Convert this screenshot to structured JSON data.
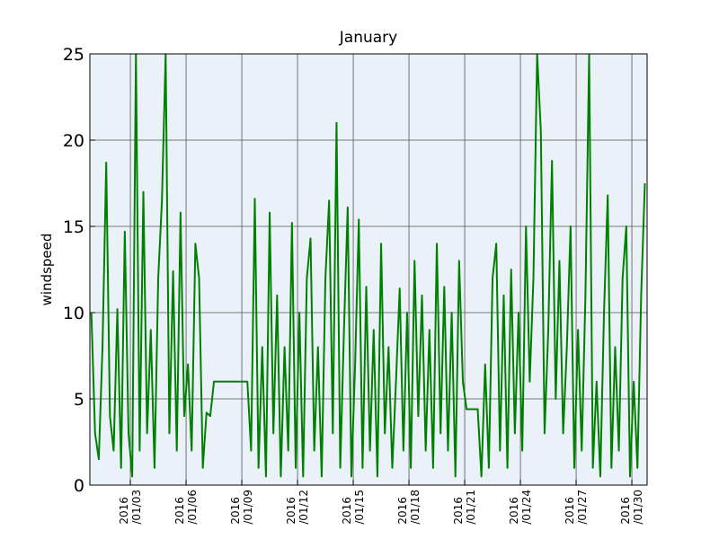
{
  "chart_data": {
    "type": "line",
    "title": "January",
    "y_label": "windspeed",
    "x": [
      0.9,
      1.1,
      1.3,
      1.5,
      1.7,
      1.9,
      2.1,
      2.3,
      2.5,
      2.7,
      2.9,
      3.1,
      3.3,
      3.5,
      3.7,
      3.9,
      4.1,
      4.3,
      4.5,
      4.7,
      4.9,
      5.1,
      5.3,
      5.5,
      5.7,
      5.9,
      6.1,
      6.3,
      6.5,
      6.7,
      6.9,
      7.1,
      7.3,
      7.5,
      7.7,
      7.9,
      8.1,
      8.3,
      8.5,
      8.7,
      8.9,
      9.1,
      9.3,
      9.5,
      9.7,
      9.9,
      10.1,
      10.3,
      10.5,
      10.7,
      10.9,
      11.1,
      11.3,
      11.5,
      11.7,
      11.9,
      12.1,
      12.3,
      12.5,
      12.7,
      12.9,
      13.1,
      13.3,
      13.5,
      13.7,
      13.9,
      14.1,
      14.3,
      14.5,
      14.7,
      14.9,
      15.1,
      15.3,
      15.5,
      15.7,
      15.9,
      16.1,
      16.3,
      16.5,
      16.7,
      16.9,
      17.1,
      17.3,
      17.5,
      17.7,
      17.9,
      18.1,
      18.3,
      18.5,
      18.7,
      18.9,
      19.1,
      19.3,
      19.5,
      19.7,
      19.9,
      20.1,
      20.3,
      20.5,
      20.7,
      20.9,
      21.1,
      21.3,
      21.5,
      21.7,
      21.9,
      22.1,
      22.3,
      22.5,
      22.7,
      22.9,
      23.1,
      23.3,
      23.5,
      23.7,
      23.9,
      24.1,
      24.3,
      24.5,
      24.7,
      24.9,
      25.1,
      25.3,
      25.5,
      25.7,
      25.9,
      26.1,
      26.3,
      26.5,
      26.7,
      26.9,
      27.1,
      27.3,
      27.5,
      27.7,
      27.9,
      28.1,
      28.3,
      28.5,
      28.7,
      28.9,
      29.1,
      29.3,
      29.5,
      29.7,
      29.9,
      30.1,
      30.3,
      30.5,
      30.7
    ],
    "series": [
      {
        "name": "windspeed",
        "color": "#008000",
        "values": [
          10,
          3,
          1.5,
          8,
          18.7,
          4,
          2,
          10.2,
          1,
          14.7,
          3,
          0.5,
          25,
          2,
          17,
          3,
          9,
          1,
          12,
          16.5,
          25,
          3,
          12.4,
          2,
          15.8,
          4,
          7,
          2,
          14,
          12,
          1,
          4.2,
          4,
          6,
          6,
          6,
          6,
          6,
          6,
          6,
          6,
          6,
          6,
          2,
          16.6,
          1,
          8,
          0.5,
          15.8,
          3,
          11,
          0.5,
          8,
          2,
          15.2,
          1,
          10,
          0.5,
          12,
          14.3,
          2,
          8,
          0.5,
          12,
          16.5,
          3,
          21,
          1,
          9,
          16.1,
          0.5,
          7,
          15.4,
          1,
          11.5,
          2,
          9,
          0.5,
          14,
          3,
          8,
          1,
          6,
          11.4,
          2,
          10,
          1,
          13,
          4,
          11,
          2,
          9,
          1,
          14,
          3,
          11.5,
          2,
          10,
          0.5,
          13,
          6,
          4.4,
          4.4,
          4.4,
          4.4,
          0.5,
          7,
          1,
          12,
          14,
          2,
          11,
          1,
          12.5,
          3,
          10,
          2,
          15,
          6,
          12,
          25,
          20.5,
          3,
          9,
          18.8,
          5,
          13,
          3,
          8,
          15,
          1,
          9,
          2,
          11,
          25,
          1,
          6,
          0.5,
          10,
          16.8,
          1,
          8,
          2,
          12,
          15,
          0.5,
          6,
          1,
          11,
          17.5
        ]
      }
    ],
    "xlim": [
      0.82,
      30.82
    ],
    "xticks": [
      {
        "value": 3,
        "label": "2016\n/01/03"
      },
      {
        "value": 6,
        "label": "2016\n/01/06"
      },
      {
        "value": 9,
        "label": "2016\n/01/09"
      },
      {
        "value": 12,
        "label": "2016\n/01/12"
      },
      {
        "value": 15,
        "label": "2016\n/01/15"
      },
      {
        "value": 18,
        "label": "2016\n/01/18"
      },
      {
        "value": 21,
        "label": "2016\n/01/21"
      },
      {
        "value": 24,
        "label": "2016\n/01/24"
      },
      {
        "value": 27,
        "label": "2016\n/01/27"
      },
      {
        "value": 30,
        "label": "2016\n/01/30"
      }
    ],
    "ylim": [
      0,
      25
    ],
    "yticks": [
      0,
      5,
      10,
      15,
      20,
      25
    ],
    "grid": true,
    "background": "#ebf1f8"
  }
}
